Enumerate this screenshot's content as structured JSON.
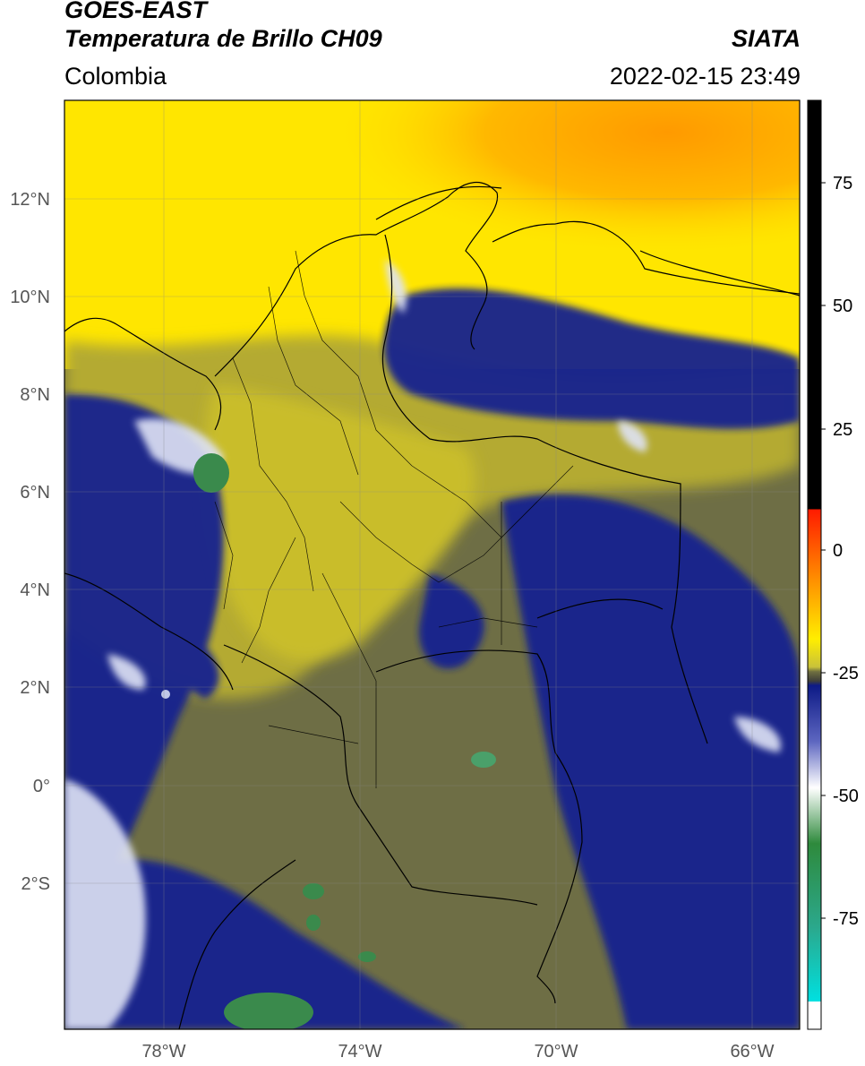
{
  "header": {
    "satellite": "GOES-EAST",
    "product": "Temperatura de Brillo CH09",
    "source": "SIATA",
    "region": "Colombia",
    "timestamp": "2022-02-15 23:49"
  },
  "map": {
    "lat_labels": [
      "12°N",
      "10°N",
      "8°N",
      "6°N",
      "4°N",
      "2°N",
      "0°",
      "2°S"
    ],
    "lon_labels": [
      "78°W",
      "74°W",
      "70°W",
      "66°W"
    ]
  },
  "colorbar": {
    "tick_labels": [
      "75",
      "50",
      "25",
      "0",
      "-25",
      "-50",
      "-75"
    ],
    "colors": {
      "black": "#000000",
      "red": "#ff2200",
      "orange": "#ff9900",
      "yellow": "#ffee00",
      "olive": "#7a7a3a",
      "navy": "#0d1a86",
      "white": "#ffffff",
      "green": "#2e8a3c",
      "cyan": "#00e0e0"
    }
  }
}
